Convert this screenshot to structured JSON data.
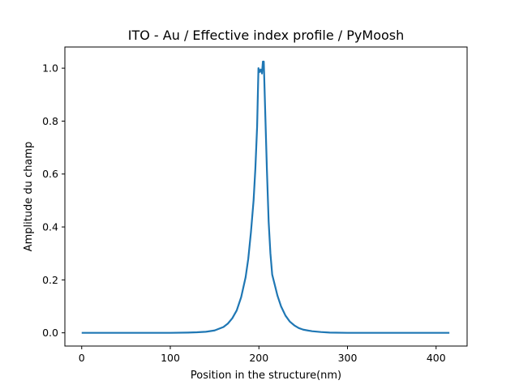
{
  "chart_data": {
    "type": "line",
    "title": "ITO - Au / Effective index profile / PyMoosh",
    "xlabel": "Position in the structure(nm)",
    "ylabel": "Amplitude du champ",
    "xlim": [
      -19,
      435
    ],
    "ylim": [
      -0.05,
      1.08
    ],
    "xticks": [
      0,
      100,
      200,
      300,
      400
    ],
    "yticks": [
      0.0,
      0.2,
      0.4,
      0.6,
      0.8,
      1.0
    ],
    "xtick_labels": [
      "0",
      "100",
      "200",
      "300",
      "400"
    ],
    "ytick_labels": [
      "0.0",
      "0.2",
      "0.4",
      "0.6",
      "0.8",
      "1.0"
    ],
    "grid": false,
    "series": [
      {
        "color": "#1f77b4",
        "x": [
          0,
          50,
          100,
          120,
          130,
          140,
          150,
          160,
          165,
          170,
          175,
          180,
          185,
          188,
          191,
          194,
          196,
          198,
          199.5,
          200.5,
          202,
          203.5,
          204.5,
          205.5,
          207,
          209,
          211,
          213,
          215,
          218,
          221,
          225,
          230,
          235,
          240,
          245,
          250,
          260,
          270,
          280,
          300,
          350,
          415
        ],
        "y": [
          0.0,
          0.0,
          0.0,
          0.001,
          0.002,
          0.004,
          0.009,
          0.022,
          0.035,
          0.055,
          0.085,
          0.135,
          0.21,
          0.28,
          0.38,
          0.5,
          0.62,
          0.78,
          1.0,
          0.985,
          0.995,
          0.98,
          1.025,
          1.025,
          0.85,
          0.62,
          0.42,
          0.3,
          0.22,
          0.18,
          0.14,
          0.1,
          0.065,
          0.042,
          0.028,
          0.018,
          0.012,
          0.006,
          0.003,
          0.001,
          0.0,
          0.0,
          0.0
        ]
      }
    ]
  }
}
